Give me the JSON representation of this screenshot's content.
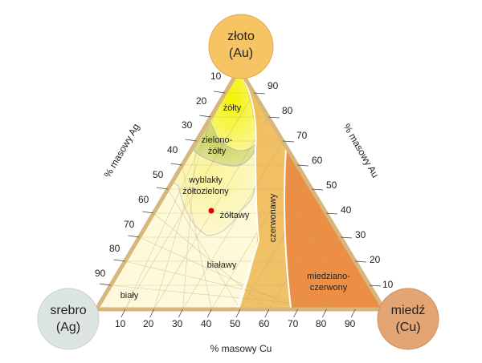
{
  "colors": {
    "gold_vertex": "#f6c463",
    "silver_vertex": "#dde5e3",
    "copper_vertex": "#e3a574",
    "triangle_border": "#d9b67f",
    "triangle_fill": "#fff6c2",
    "grid": "#c9b788",
    "point": "#e00000"
  },
  "vertices": {
    "gold": {
      "name": "złoto",
      "symbol": "(Au)"
    },
    "silver": {
      "name": "srebro",
      "symbol": "(Ag)"
    },
    "copper": {
      "name": "miedź",
      "symbol": "(Cu)"
    }
  },
  "axes": {
    "ag": {
      "title": "% masowy Ag",
      "ticks": [
        "10",
        "20",
        "30",
        "40",
        "50",
        "60",
        "70",
        "80",
        "90"
      ]
    },
    "au": {
      "title": "% masowy Au",
      "ticks": [
        "90",
        "80",
        "70",
        "60",
        "50",
        "40",
        "30",
        "20",
        "10"
      ]
    },
    "cu": {
      "title": "% masowy Cu",
      "ticks": [
        "10",
        "20",
        "30",
        "40",
        "50",
        "60",
        "70",
        "80",
        "90"
      ]
    }
  },
  "regions": {
    "zolty": "żółty",
    "zielonozolty_1": "zielono-",
    "zielonozolty_2": "żółty",
    "wyblakly_1": "wyblakły",
    "wyblakly_2": "żółtozielony",
    "zoltawy": "żółtawy",
    "bialawy": "białawy",
    "bialy": "biały",
    "czerwonawy": "czerwonawy",
    "miedziano_1": "miedziano-",
    "miedziano_2": "czerwony"
  },
  "point": {
    "color": "#e00000"
  }
}
